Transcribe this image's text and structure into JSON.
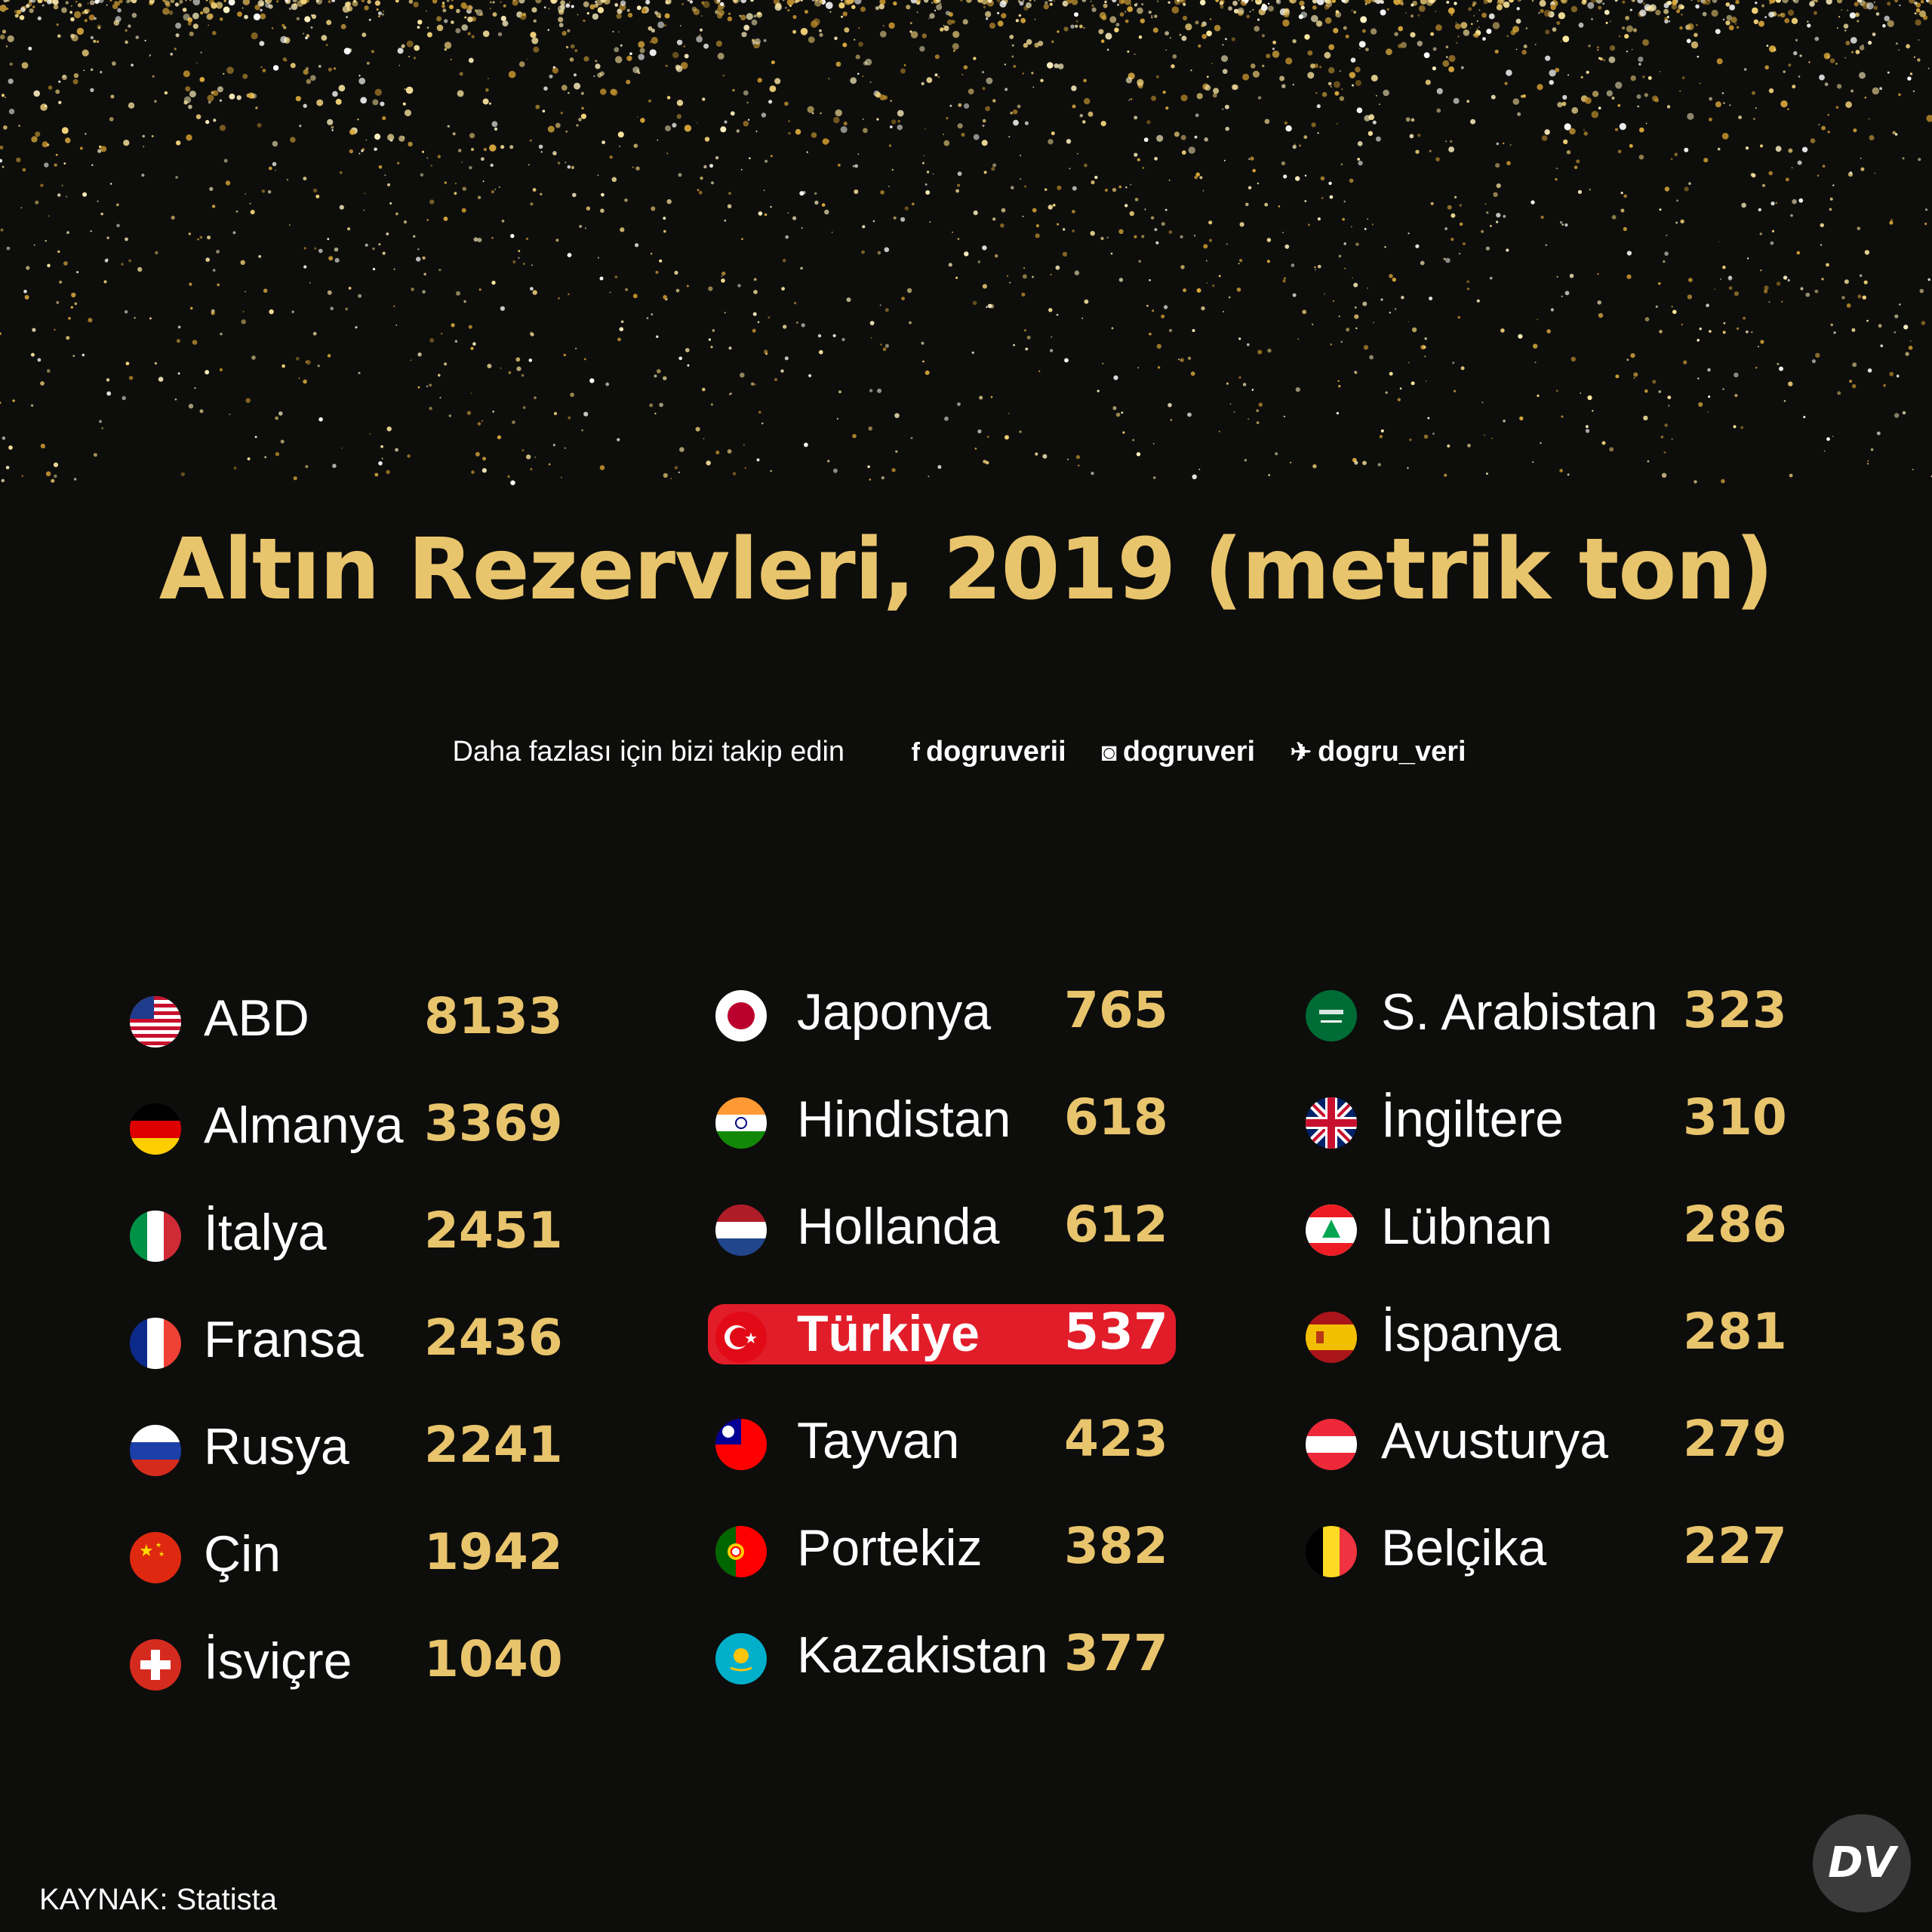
{
  "header": {
    "title": "Altın Rezervleri, 2019 (metrik ton)",
    "follow_text": "Daha fazlası için bizi takip edin",
    "social": [
      {
        "icon": "facebook-icon",
        "handle": "dogruverii"
      },
      {
        "icon": "instagram-icon",
        "handle": "dogruveri"
      },
      {
        "icon": "twitter-icon",
        "handle": "dogru_veri"
      }
    ]
  },
  "colors": {
    "gold": "#e8c46c",
    "highlight": "#e21d2a",
    "background": "#0d0d0b",
    "text": "#ffffff"
  },
  "chart_data": {
    "type": "table",
    "title": "Altın Rezervleri, 2019 (metrik ton)",
    "highlight": "Türkiye",
    "columns": [
      [
        {
          "country": "ABD",
          "value": 8133,
          "flag": "usa-flag-icon"
        },
        {
          "country": "Almanya",
          "value": 3369,
          "flag": "germany-flag-icon"
        },
        {
          "country": "İtalya",
          "value": 2451,
          "flag": "italy-flag-icon"
        },
        {
          "country": "Fransa",
          "value": 2436,
          "flag": "france-flag-icon"
        },
        {
          "country": "Rusya",
          "value": 2241,
          "flag": "russia-flag-icon"
        },
        {
          "country": "Çin",
          "value": 1942,
          "flag": "china-flag-icon"
        },
        {
          "country": "İsviçre",
          "value": 1040,
          "flag": "switzerland-flag-icon"
        }
      ],
      [
        {
          "country": "Japonya",
          "value": 765,
          "flag": "japan-flag-icon"
        },
        {
          "country": "Hindistan",
          "value": 618,
          "flag": "india-flag-icon"
        },
        {
          "country": "Hollanda",
          "value": 612,
          "flag": "netherlands-flag-icon"
        },
        {
          "country": "Türkiye",
          "value": 537,
          "flag": "turkey-flag-icon"
        },
        {
          "country": "Tayvan",
          "value": 423,
          "flag": "taiwan-flag-icon"
        },
        {
          "country": "Portekiz",
          "value": 382,
          "flag": "portugal-flag-icon"
        },
        {
          "country": "Kazakistan",
          "value": 377,
          "flag": "kazakhstan-flag-icon"
        }
      ],
      [
        {
          "country": "S. Arabistan",
          "value": 323,
          "flag": "saudi-arabia-flag-icon"
        },
        {
          "country": "İngiltere",
          "value": 310,
          "flag": "uk-flag-icon"
        },
        {
          "country": "Lübnan",
          "value": 286,
          "flag": "lebanon-flag-icon"
        },
        {
          "country": "İspanya",
          "value": 281,
          "flag": "spain-flag-icon"
        },
        {
          "country": "Avusturya",
          "value": 279,
          "flag": "austria-flag-icon"
        },
        {
          "country": "Belçika",
          "value": 227,
          "flag": "belgium-flag-icon"
        }
      ]
    ]
  },
  "footer": {
    "source": "KAYNAK: Statista",
    "logo_text": "DV"
  }
}
